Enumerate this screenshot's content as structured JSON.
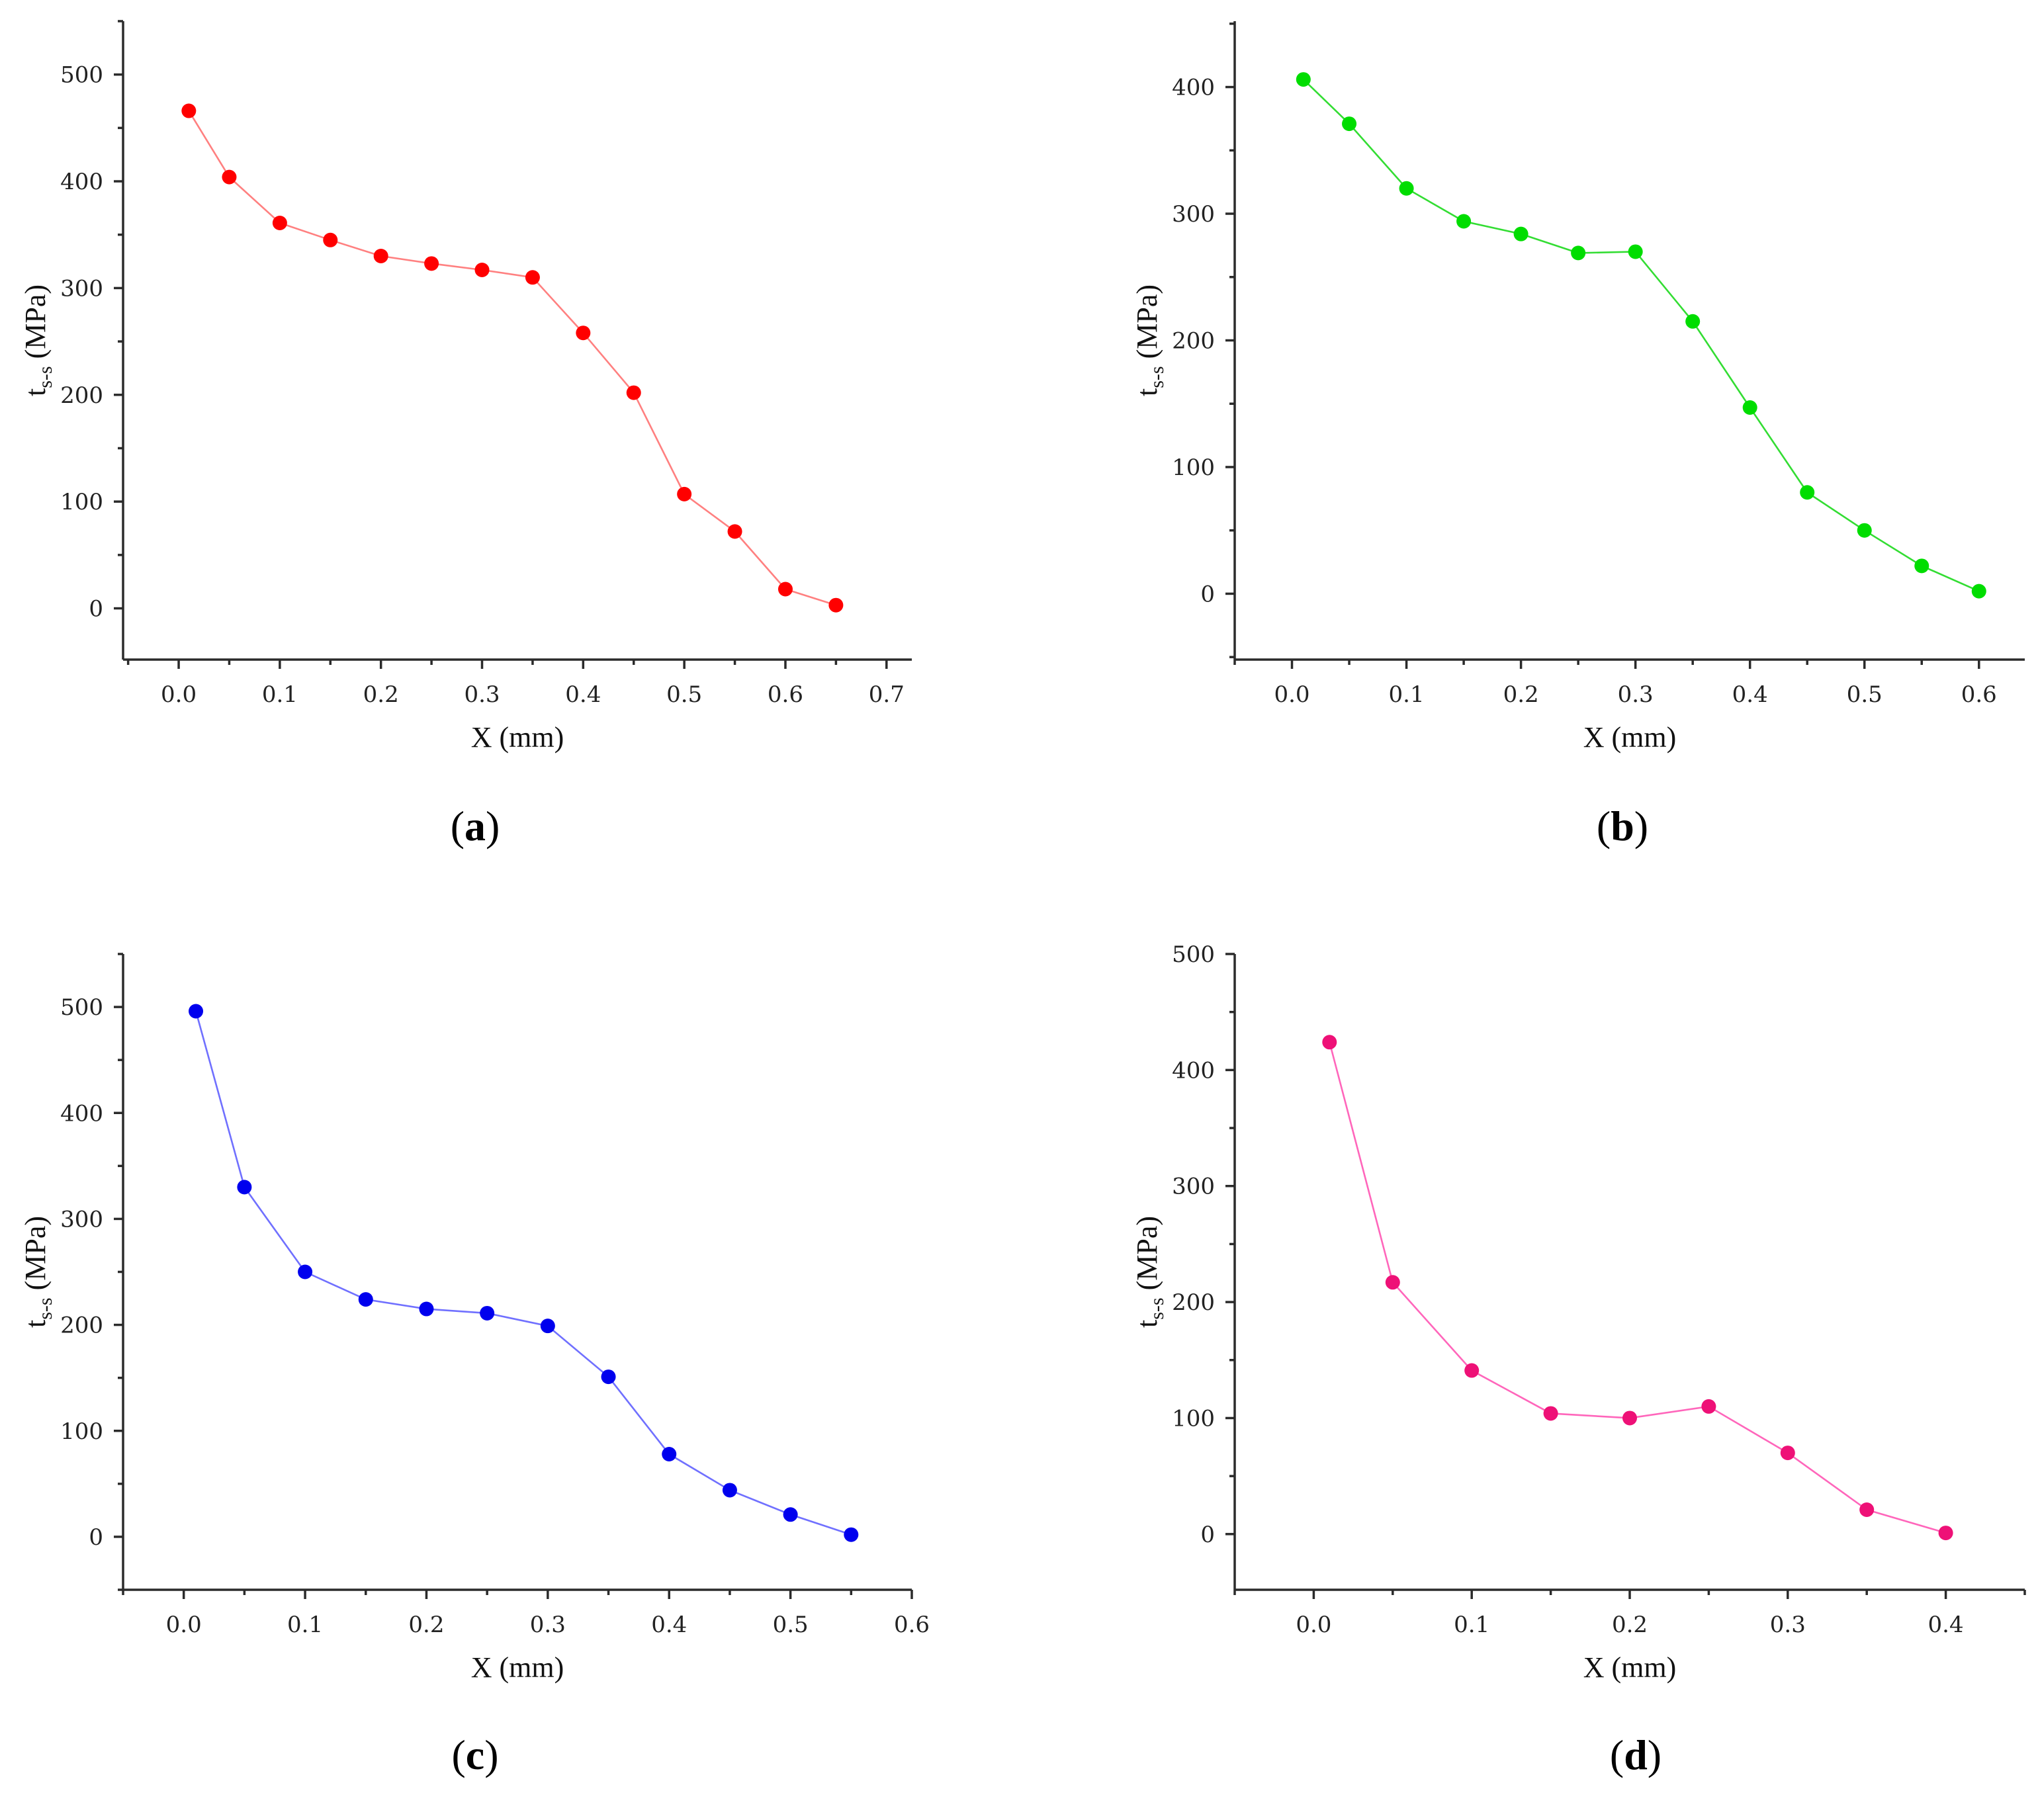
{
  "figure": {
    "panels": [
      "a",
      "b",
      "c",
      "d"
    ]
  },
  "chart_data": [
    {
      "id": "a",
      "type": "line",
      "caption_letter": "a",
      "xlabel": "X (mm)",
      "ylabel_main": "t",
      "ylabel_sub": "s-s",
      "ylabel_unit": " (MPa)",
      "color_point": "#ff0000",
      "color_line": "#ff8080",
      "xlim": [
        -0.055,
        0.725
      ],
      "ylim": [
        -48,
        550
      ],
      "xticks": [
        0.0,
        0.1,
        0.2,
        0.3,
        0.4,
        0.5,
        0.6,
        0.7
      ],
      "xtick_labels": [
        "0.0",
        "0.1",
        "0.2",
        "0.3",
        "0.4",
        "0.5",
        "0.6",
        "0.7"
      ],
      "yticks": [
        0,
        100,
        200,
        300,
        400,
        500
      ],
      "ytick_labels": [
        "0",
        "100",
        "200",
        "300",
        "400",
        "500"
      ],
      "x": [
        0.01,
        0.05,
        0.1,
        0.15,
        0.2,
        0.25,
        0.3,
        0.35,
        0.4,
        0.45,
        0.5,
        0.55,
        0.6,
        0.65
      ],
      "y": [
        466,
        404,
        361,
        345,
        330,
        323,
        317,
        310,
        258,
        202,
        107,
        72,
        18,
        3
      ]
    },
    {
      "id": "b",
      "type": "line",
      "caption_letter": "b",
      "xlabel": "X (mm)",
      "ylabel_main": "t",
      "ylabel_sub": "s-s",
      "ylabel_unit": " (MPa)",
      "color_point": "#00dd00",
      "color_line": "#33dd33",
      "xlim": [
        -0.05,
        0.64
      ],
      "ylim": [
        -52,
        452
      ],
      "xticks": [
        0.0,
        0.1,
        0.2,
        0.3,
        0.4,
        0.5,
        0.6
      ],
      "xtick_labels": [
        "0.0",
        "0.1",
        "0.2",
        "0.3",
        "0.4",
        "0.5",
        "0.6"
      ],
      "yticks": [
        0,
        100,
        200,
        300,
        400
      ],
      "ytick_labels": [
        "0",
        "100",
        "200",
        "300",
        "400"
      ],
      "x": [
        0.01,
        0.05,
        0.1,
        0.15,
        0.2,
        0.25,
        0.3,
        0.35,
        0.4,
        0.45,
        0.5,
        0.55,
        0.6
      ],
      "y": [
        406,
        371,
        320,
        294,
        284,
        269,
        270,
        215,
        147,
        80,
        50,
        22,
        2
      ]
    },
    {
      "id": "c",
      "type": "line",
      "caption_letter": "c",
      "xlabel": "X (mm)",
      "ylabel_main": "t",
      "ylabel_sub": "s-s",
      "ylabel_unit": " (MPa)",
      "color_point": "#0000ee",
      "color_line": "#7070ff",
      "xlim": [
        -0.05,
        0.6
      ],
      "ylim": [
        -50,
        550
      ],
      "xticks": [
        0.0,
        0.1,
        0.2,
        0.3,
        0.4,
        0.5,
        0.6
      ],
      "xtick_labels": [
        "0.0",
        "0.1",
        "0.2",
        "0.3",
        "0.4",
        "0.5",
        "0.6"
      ],
      "yticks": [
        0,
        100,
        200,
        300,
        400,
        500
      ],
      "ytick_labels": [
        "0",
        "100",
        "200",
        "300",
        "400",
        "500"
      ],
      "x": [
        0.01,
        0.05,
        0.1,
        0.15,
        0.2,
        0.25,
        0.3,
        0.35,
        0.4,
        0.45,
        0.5,
        0.55
      ],
      "y": [
        496,
        330,
        250,
        224,
        215,
        211,
        199,
        151,
        78,
        44,
        21,
        2
      ]
    },
    {
      "id": "d",
      "type": "line",
      "caption_letter": "d",
      "xlabel": "X (mm)",
      "ylabel_main": "t",
      "ylabel_sub": "s-s",
      "ylabel_unit": " (MPa)",
      "color_point": "#ee1177",
      "color_line": "#ff66bb",
      "xlim": [
        -0.05,
        0.45
      ],
      "ylim": [
        -48,
        500
      ],
      "xticks": [
        0.0,
        0.1,
        0.2,
        0.3,
        0.4
      ],
      "xtick_labels": [
        "0.0",
        "0.1",
        "0.2",
        "0.3",
        "0.4"
      ],
      "yticks": [
        0,
        100,
        200,
        300,
        400,
        500
      ],
      "ytick_labels": [
        "0",
        "100",
        "200",
        "300",
        "400",
        "500"
      ],
      "x": [
        0.01,
        0.05,
        0.1,
        0.15,
        0.2,
        0.25,
        0.3,
        0.35,
        0.4
      ],
      "y": [
        424,
        217,
        141,
        104,
        100,
        110,
        70,
        21,
        1
      ]
    }
  ]
}
